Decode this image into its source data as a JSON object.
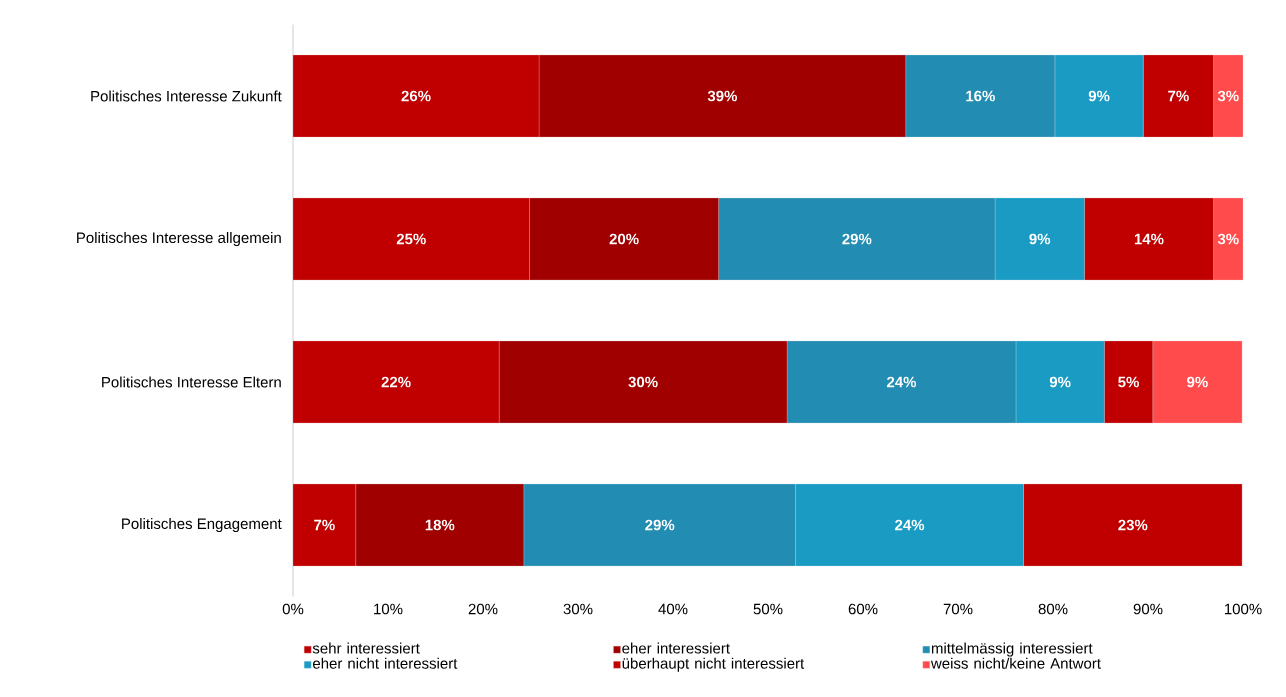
{
  "chart_data": {
    "type": "bar",
    "orientation": "horizontal",
    "stacked": true,
    "categories": [
      "Politisches Interesse Zukunft",
      "Politisches Interesse allgemein",
      "Politisches Interesse Eltern",
      "Politisches Engagement"
    ],
    "series": [
      {
        "name": "sehr interessiert",
        "color": "#c00000",
        "values": [
          25.9,
          24.9,
          21.7,
          6.6
        ],
        "value_labels": [
          "26%",
          "25%",
          "22%",
          "7%"
        ]
      },
      {
        "name": "eher interessiert",
        "color": "#a00000",
        "values": [
          38.6,
          19.9,
          30.3,
          17.7
        ],
        "value_labels": [
          "39%",
          "20%",
          "30%",
          "18%"
        ]
      },
      {
        "name": "mittelmässig interessiert",
        "color": "#228cb2",
        "values": [
          15.7,
          29.1,
          24.1,
          28.6
        ],
        "value_labels": [
          "16%",
          "29%",
          "24%",
          "29%"
        ]
      },
      {
        "name": "eher nicht interessiert",
        "color": "#1a9bc3",
        "values": [
          9.3,
          9.4,
          9.3,
          24.0
        ],
        "value_labels": [
          "9%",
          "9%",
          "9%",
          "24%"
        ]
      },
      {
        "name": "überhaupt nicht interessiert",
        "color": "#c00000",
        "values": [
          7.4,
          13.6,
          5.1,
          23.0
        ],
        "value_labels": [
          "7%",
          "14%",
          "5%",
          "23%"
        ]
      },
      {
        "name": "weiss nicht/keine Antwort",
        "color": "#ff4b4b",
        "values": [
          3.1,
          3.1,
          9.4,
          null
        ],
        "value_labels": [
          "3%",
          "3%",
          "9%",
          null
        ]
      }
    ],
    "xlim": [
      0,
      100
    ],
    "xticks": [
      {
        "value": 0,
        "label": "0%"
      },
      {
        "value": 10,
        "label": "10%"
      },
      {
        "value": 20,
        "label": "20%"
      },
      {
        "value": 30,
        "label": "30%"
      },
      {
        "value": 40,
        "label": "40%"
      },
      {
        "value": 50,
        "label": "50%"
      },
      {
        "value": 60,
        "label": "60%"
      },
      {
        "value": 70,
        "label": "70%"
      },
      {
        "value": 80,
        "label": "80%"
      },
      {
        "value": 90,
        "label": "90%"
      },
      {
        "value": 100,
        "label": "100%"
      }
    ],
    "legend": "bottom"
  }
}
